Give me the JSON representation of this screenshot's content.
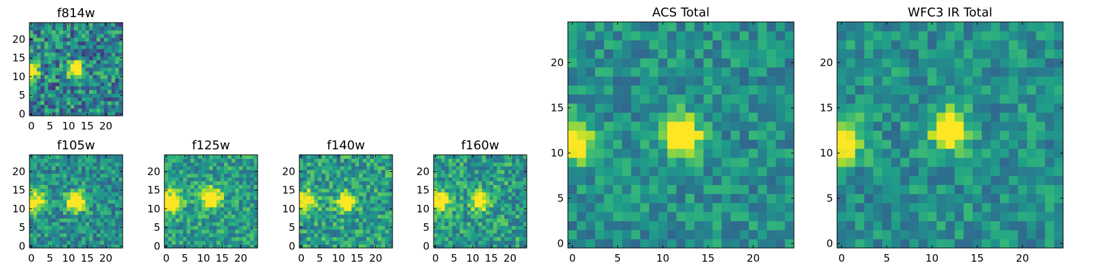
{
  "chart_data": [
    {
      "type": "heatmap",
      "key": "f814w",
      "title": "f814w",
      "xlim": [
        0,
        25
      ],
      "ylim": [
        0,
        25
      ],
      "xticks": [
        "0",
        "5",
        "10",
        "15",
        "20"
      ],
      "yticks": [
        "0",
        "5",
        "10",
        "15",
        "20"
      ],
      "blobs": [
        {
          "x": 0,
          "y": 12,
          "amp": 0.9,
          "sigma": 1.5
        },
        {
          "x": 12,
          "y": 12,
          "amp": 1.0,
          "sigma": 1.4
        }
      ],
      "noise": 0.28,
      "base": 0.45,
      "seed": 11
    },
    {
      "type": "heatmap",
      "key": "f105w",
      "title": "f105w",
      "xlim": [
        0,
        25
      ],
      "ylim": [
        0,
        25
      ],
      "xticks": [
        "0",
        "5",
        "10",
        "15",
        "20"
      ],
      "yticks": [
        "0",
        "5",
        "10",
        "15",
        "20"
      ],
      "blobs": [
        {
          "x": 1,
          "y": 12,
          "amp": 0.6,
          "sigma": 2.2
        },
        {
          "x": 12,
          "y": 12,
          "amp": 0.9,
          "sigma": 1.8
        }
      ],
      "noise": 0.2,
      "base": 0.5,
      "seed": 23
    },
    {
      "type": "heatmap",
      "key": "f125w",
      "title": "f125w",
      "xlim": [
        0,
        25
      ],
      "ylim": [
        0,
        25
      ],
      "xticks": [
        "0",
        "5",
        "10",
        "15",
        "20"
      ],
      "yticks": [
        "0",
        "5",
        "10",
        "15",
        "20"
      ],
      "blobs": [
        {
          "x": 1,
          "y": 12,
          "amp": 0.6,
          "sigma": 2.2
        },
        {
          "x": 12,
          "y": 13,
          "amp": 0.8,
          "sigma": 1.8
        }
      ],
      "noise": 0.2,
      "base": 0.55,
      "seed": 37
    },
    {
      "type": "heatmap",
      "key": "f140w",
      "title": "f140w",
      "xlim": [
        0,
        25
      ],
      "ylim": [
        0,
        25
      ],
      "xticks": [
        "0",
        "5",
        "10",
        "15",
        "20"
      ],
      "yticks": [
        "0",
        "5",
        "10",
        "15",
        "20"
      ],
      "blobs": [
        {
          "x": 1,
          "y": 12,
          "amp": 0.6,
          "sigma": 2.0
        },
        {
          "x": 12,
          "y": 12,
          "amp": 0.8,
          "sigma": 1.7
        }
      ],
      "noise": 0.22,
      "base": 0.55,
      "seed": 41
    },
    {
      "type": "heatmap",
      "key": "f160w",
      "title": "f160w",
      "xlim": [
        0,
        25
      ],
      "ylim": [
        0,
        25
      ],
      "xticks": [
        "0",
        "5",
        "10",
        "15",
        "20"
      ],
      "yticks": [
        "0",
        "5",
        "10",
        "15",
        "20"
      ],
      "blobs": [
        {
          "x": 1,
          "y": 12,
          "amp": 0.7,
          "sigma": 1.8
        },
        {
          "x": 12,
          "y": 12,
          "amp": 0.7,
          "sigma": 1.6
        }
      ],
      "noise": 0.22,
      "base": 0.55,
      "seed": 53
    },
    {
      "type": "heatmap",
      "key": "acs-total",
      "title": "ACS Total",
      "xlim": [
        0,
        25
      ],
      "ylim": [
        0,
        25
      ],
      "xticks": [
        "0",
        "5",
        "10",
        "15",
        "20"
      ],
      "yticks": [
        "0",
        "5",
        "10",
        "15",
        "20"
      ],
      "blobs": [
        {
          "x": 0,
          "y": 11.5,
          "amp": 0.75,
          "sigma": 1.6
        },
        {
          "x": 12,
          "y": 12,
          "amp": 0.85,
          "sigma": 1.5
        }
      ],
      "noise": 0.17,
      "base": 0.5,
      "seed": 67
    },
    {
      "type": "heatmap",
      "key": "wfc3-ir-total",
      "title": "WFC3 IR Total",
      "xlim": [
        0,
        25
      ],
      "ylim": [
        0,
        25
      ],
      "xticks": [
        "0",
        "5",
        "10",
        "15",
        "20"
      ],
      "yticks": [
        "0",
        "5",
        "10",
        "15",
        "20"
      ],
      "blobs": [
        {
          "x": 0,
          "y": 11.5,
          "amp": 0.75,
          "sigma": 1.6
        },
        {
          "x": 12,
          "y": 12.5,
          "amp": 0.85,
          "sigma": 1.4
        }
      ],
      "noise": 0.17,
      "base": 0.5,
      "seed": 79
    }
  ],
  "colormap": "viridis",
  "colormap_stops": [
    "#440154",
    "#482878",
    "#3e4989",
    "#31688e",
    "#26828e",
    "#1f9e89",
    "#35b779",
    "#6ece58",
    "#b5de2b",
    "#fde725"
  ]
}
